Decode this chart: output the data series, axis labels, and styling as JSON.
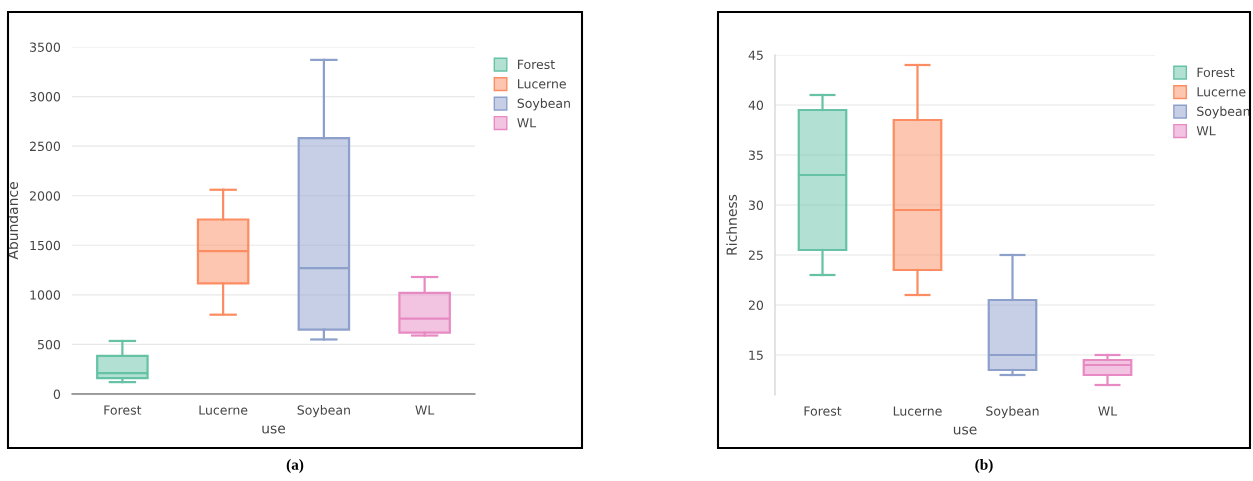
{
  "chart_data": [
    {
      "type": "box",
      "categories": [
        "Forest",
        "Lucerne",
        "Soybean",
        "WL"
      ],
      "xlabel": "use",
      "ylabel": "Abundance",
      "ylim": [
        0,
        3500
      ],
      "yticks": [
        0,
        500,
        1000,
        1500,
        2000,
        2500,
        3000,
        3500
      ],
      "grid": "y",
      "legend": "top right",
      "annotations": [
        "(a)"
      ],
      "series": [
        {
          "name": "Forest",
          "color": "#66c2a5",
          "boxes": [
            {
              "low": 120,
              "q1": 160,
              "median": 210,
              "q3": 385,
              "high": 535
            },
            null,
            null,
            null
          ]
        },
        {
          "name": "Lucerne",
          "color": "#fc8d62",
          "boxes": [
            null,
            {
              "low": 800,
              "q1": 1115,
              "median": 1440,
              "q3": 1760,
              "high": 2060
            },
            null,
            null
          ]
        },
        {
          "name": "Soybean",
          "color": "#8da0cb",
          "boxes": [
            null,
            null,
            {
              "low": 550,
              "q1": 650,
              "median": 1270,
              "q3": 2580,
              "high": 3370
            },
            null
          ]
        },
        {
          "name": "WL",
          "color": "#e78ac3",
          "boxes": [
            null,
            null,
            null,
            {
              "low": 590,
              "q1": 620,
              "median": 760,
              "q3": 1020,
              "high": 1180
            }
          ]
        }
      ]
    },
    {
      "type": "box",
      "categories": [
        "Forest",
        "Lucerne",
        "Soybean",
        "WL"
      ],
      "xlabel": "use",
      "ylabel": "Richness",
      "ylim": [
        11,
        45
      ],
      "yticks": [
        15,
        20,
        25,
        30,
        35,
        40,
        45
      ],
      "grid": "y",
      "legend": "top right",
      "annotations": [
        "(b)"
      ],
      "series": [
        {
          "name": "Forest",
          "color": "#66c2a5",
          "boxes": [
            {
              "low": 23,
              "q1": 25.5,
              "median": 33,
              "q3": 39.5,
              "high": 41
            },
            null,
            null,
            null
          ]
        },
        {
          "name": "Lucerne",
          "color": "#fc8d62",
          "boxes": [
            null,
            {
              "low": 21,
              "q1": 23.5,
              "median": 29.5,
              "q3": 38.5,
              "high": 44
            },
            null,
            null
          ]
        },
        {
          "name": "Soybean",
          "color": "#8da0cb",
          "boxes": [
            null,
            null,
            {
              "low": 13,
              "q1": 13.5,
              "median": 15,
              "q3": 20.5,
              "high": 25
            },
            null
          ]
        },
        {
          "name": "WL",
          "color": "#e78ac3",
          "boxes": [
            null,
            null,
            null,
            {
              "low": 12,
              "q1": 13,
              "median": 14,
              "q3": 14.5,
              "high": 15
            }
          ]
        }
      ]
    }
  ]
}
